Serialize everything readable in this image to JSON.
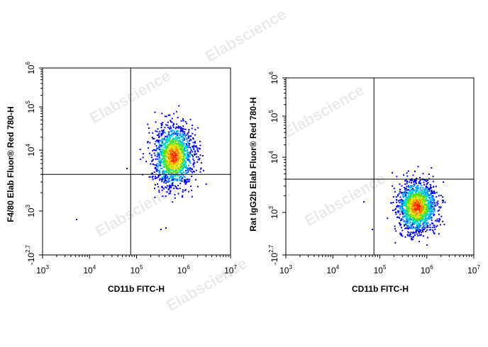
{
  "chart_data": [
    {
      "type": "scatter",
      "subtype": "flow-cytometry-density",
      "xlabel": "CD11b FITC-H",
      "ylabel": "F4/80 Elab Fluor® Red 780-H",
      "x_scale": "log",
      "y_scale": "biexponential",
      "x_ticks": [
        {
          "base": "10",
          "exp": "3"
        },
        {
          "base": "10",
          "exp": "4"
        },
        {
          "base": "10",
          "exp": "5"
        },
        {
          "base": "10",
          "exp": "6"
        },
        {
          "base": "10",
          "exp": "7"
        }
      ],
      "y_ticks": [
        {
          "base": "-10",
          "exp": "2.7"
        },
        {
          "base": "10",
          "exp": "3"
        },
        {
          "base": "10",
          "exp": "4"
        },
        {
          "base": "10",
          "exp": "5"
        },
        {
          "base": "10",
          "exp": "6"
        }
      ],
      "xlim": [
        1000,
        10000000
      ],
      "gate": {
        "x": 75000,
        "y": 4000
      },
      "population": {
        "x_center": 600000,
        "y_center": 8000
      },
      "grid": false,
      "legend": "none"
    },
    {
      "type": "scatter",
      "subtype": "flow-cytometry-density",
      "xlabel": "CD11b FITC-H",
      "ylabel": "Rat IgG2b Elab Fluor® Red 780-H",
      "x_scale": "log",
      "y_scale": "biexponential",
      "x_ticks": [
        {
          "base": "10",
          "exp": "3"
        },
        {
          "base": "10",
          "exp": "4"
        },
        {
          "base": "10",
          "exp": "5"
        },
        {
          "base": "10",
          "exp": "6"
        },
        {
          "base": "10",
          "exp": "7"
        }
      ],
      "y_ticks": [
        {
          "base": "-10",
          "exp": "2.7"
        },
        {
          "base": "10",
          "exp": "3"
        },
        {
          "base": "10",
          "exp": "4"
        },
        {
          "base": "10",
          "exp": "5"
        },
        {
          "base": "10",
          "exp": "6"
        }
      ],
      "xlim": [
        1000,
        10000000
      ],
      "gate": {
        "x": 75000,
        "y": 4000
      },
      "population": {
        "x_center": 600000,
        "y_center": 1300
      },
      "grid": false,
      "legend": "none"
    }
  ],
  "watermark": "Elabscience",
  "colors": {
    "axis": "#000000",
    "density_scale": [
      "#0000ff",
      "#00a0ff",
      "#00e0c0",
      "#60e000",
      "#f0e000",
      "#ff8000",
      "#ff2000"
    ]
  }
}
